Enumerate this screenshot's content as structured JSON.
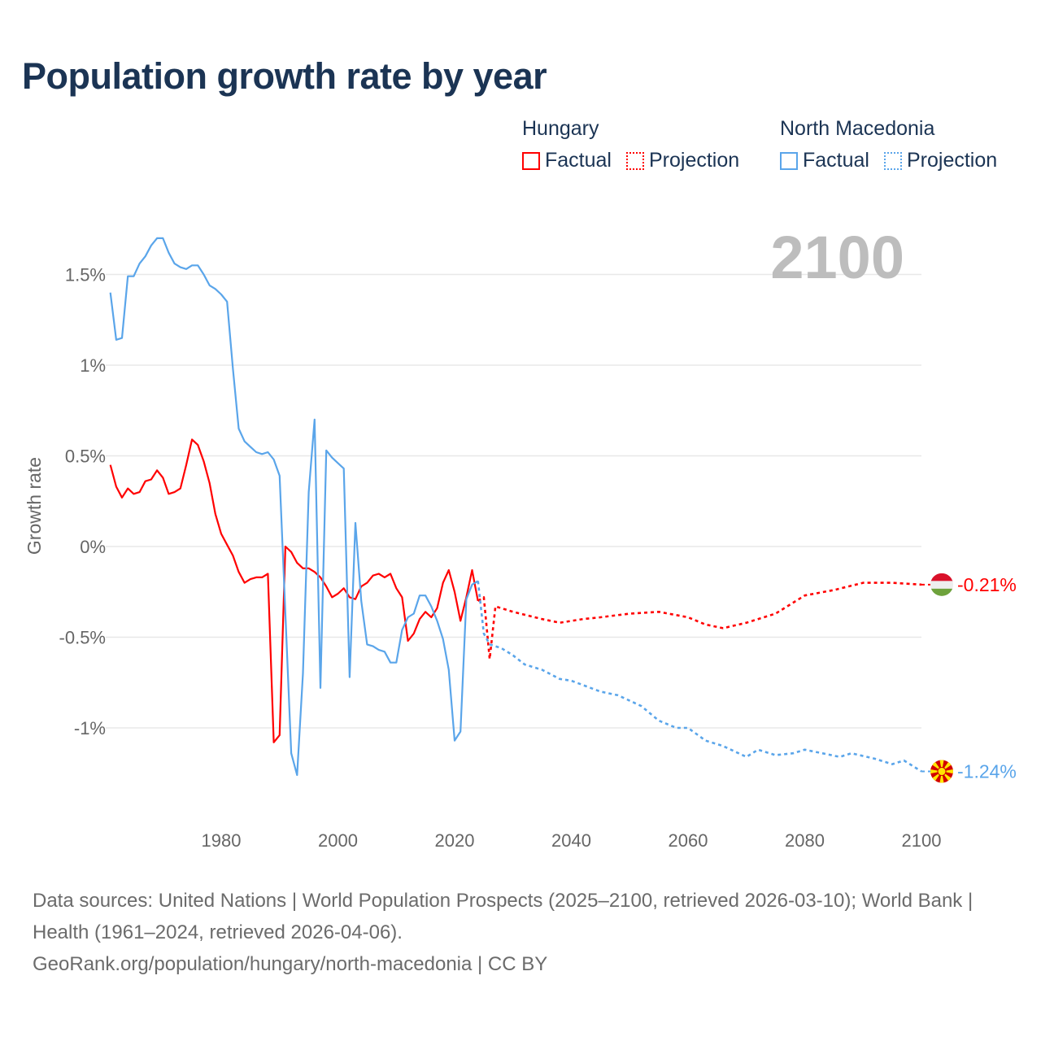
{
  "title": "Population growth rate by year",
  "legend": {
    "groups": [
      {
        "country": "Hungary",
        "factual": "Factual",
        "projection": "Projection",
        "color": "#ff0000"
      },
      {
        "country": "North Macedonia",
        "factual": "Factual",
        "projection": "Projection",
        "color": "#5aa5ea"
      }
    ]
  },
  "footer": {
    "sources": "Data sources: United Nations | World Population Prospects (2025–2100, retrieved 2026-03-10); World Bank | Health (1961–2024, retrieved 2026-04-06).",
    "link": "GeoRank.org/population/hungary/north-macedonia | CC BY"
  },
  "chart_data": {
    "type": "line",
    "title": "Population growth rate by year",
    "ylabel": "Growth rate",
    "xlabel": "",
    "year_display": "2100",
    "xlim": [
      1961,
      2100
    ],
    "ylim": [
      -1.35,
      1.75
    ],
    "x_ticks": [
      1980,
      2000,
      2020,
      2040,
      2060,
      2080,
      2100
    ],
    "x_tick_labels": [
      "1980",
      "2000",
      "2020",
      "2040",
      "2060",
      "2080",
      "2100"
    ],
    "y_ticks": [
      1.5,
      1,
      0.5,
      0,
      -0.5,
      -1
    ],
    "y_tick_labels": [
      "1.5%",
      "1%",
      "0.5%",
      "0%",
      "-0.5%",
      "-1%"
    ],
    "grid": true,
    "legend_position": "top-right",
    "series": [
      {
        "name": "Hungary",
        "kind": "Factual",
        "color": "#ff0000",
        "dashed": false,
        "x_start": 1961,
        "values": [
          0.45,
          0.33,
          0.27,
          0.32,
          0.29,
          0.3,
          0.36,
          0.37,
          0.42,
          0.38,
          0.29,
          0.3,
          0.32,
          0.45,
          0.59,
          0.56,
          0.47,
          0.35,
          0.18,
          0.07,
          0.01,
          -0.05,
          -0.14,
          -0.2,
          -0.18,
          -0.17,
          -0.17,
          -0.15,
          -1.08,
          -1.04,
          0.0,
          -0.03,
          -0.09,
          -0.12,
          -0.12,
          -0.14,
          -0.17,
          -0.22,
          -0.28,
          -0.26,
          -0.23,
          -0.28,
          -0.29,
          -0.22,
          -0.2,
          -0.16,
          -0.15,
          -0.17,
          -0.15,
          -0.23,
          -0.28,
          -0.52,
          -0.48,
          -0.4,
          -0.36,
          -0.39,
          -0.34,
          -0.2,
          -0.13,
          -0.25,
          -0.41,
          -0.28,
          -0.13,
          -0.3
        ]
      },
      {
        "name": "Hungary",
        "kind": "Projection",
        "color": "#ff0000",
        "dashed": true,
        "x": [
          2024,
          2025,
          2026,
          2027,
          2030,
          2035,
          2038,
          2042,
          2045,
          2050,
          2055,
          2060,
          2063,
          2066,
          2070,
          2075,
          2080,
          2085,
          2090,
          2095,
          2100
        ],
        "values": [
          -0.3,
          -0.28,
          -0.62,
          -0.33,
          -0.36,
          -0.4,
          -0.42,
          -0.4,
          -0.39,
          -0.37,
          -0.36,
          -0.39,
          -0.43,
          -0.45,
          -0.42,
          -0.37,
          -0.27,
          -0.24,
          -0.2,
          -0.2,
          -0.21
        ]
      },
      {
        "name": "North Macedonia",
        "kind": "Factual",
        "color": "#5aa5ea",
        "dashed": false,
        "x_start": 1961,
        "values": [
          1.4,
          1.14,
          1.15,
          1.49,
          1.49,
          1.56,
          1.6,
          1.66,
          1.7,
          1.7,
          1.62,
          1.56,
          1.54,
          1.53,
          1.55,
          1.55,
          1.5,
          1.44,
          1.42,
          1.39,
          1.35,
          0.98,
          0.65,
          0.58,
          0.55,
          0.52,
          0.51,
          0.52,
          0.48,
          0.39,
          -0.37,
          -1.14,
          -1.26,
          -0.7,
          0.3,
          0.7,
          -0.78,
          0.53,
          0.49,
          0.46,
          0.43,
          -0.72,
          0.13,
          -0.3,
          -0.54,
          -0.55,
          -0.57,
          -0.58,
          -0.64,
          -0.64,
          -0.46,
          -0.39,
          -0.37,
          -0.27,
          -0.27,
          -0.33,
          -0.41,
          -0.51,
          -0.68,
          -1.07,
          -1.02,
          -0.29,
          -0.21,
          -0.19
        ]
      },
      {
        "name": "North Macedonia",
        "kind": "Projection",
        "color": "#5aa5ea",
        "dashed": true,
        "x": [
          2024,
          2025,
          2026,
          2028,
          2030,
          2032,
          2035,
          2038,
          2040,
          2045,
          2048,
          2052,
          2055,
          2058,
          2060,
          2063,
          2066,
          2070,
          2072,
          2075,
          2078,
          2080,
          2083,
          2086,
          2088,
          2092,
          2095,
          2097,
          2100
        ],
        "values": [
          -0.19,
          -0.48,
          -0.54,
          -0.56,
          -0.6,
          -0.65,
          -0.68,
          -0.73,
          -0.74,
          -0.8,
          -0.82,
          -0.88,
          -0.96,
          -1.0,
          -1.0,
          -1.07,
          -1.1,
          -1.16,
          -1.12,
          -1.15,
          -1.14,
          -1.12,
          -1.14,
          -1.16,
          -1.14,
          -1.17,
          -1.2,
          -1.18,
          -1.24
        ]
      }
    ],
    "end_labels": [
      {
        "country": "Hungary",
        "value": -0.21,
        "label": "-0.21%",
        "color": "#ff0000"
      },
      {
        "country": "North Macedonia",
        "value": -1.24,
        "label": "-1.24%",
        "color": "#5aa5ea"
      }
    ]
  }
}
